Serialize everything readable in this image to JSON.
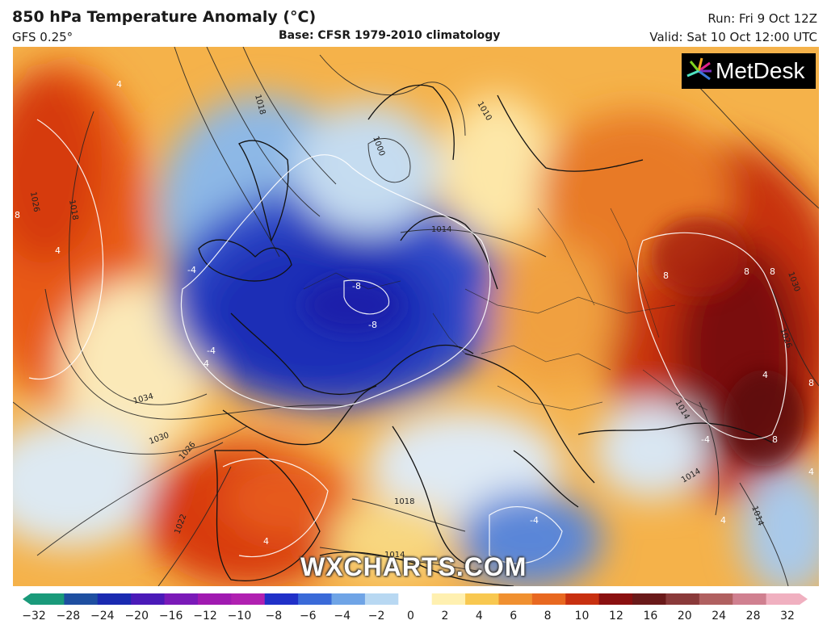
{
  "header": {
    "title": "850 hPa Temperature Anomaly (°C)",
    "model": "GFS 0.25°",
    "base": "Base: CFSR 1979-2010 climatology",
    "run": "Run: Fri 9 Oct 12Z",
    "valid": "Valid: Sat 10 Oct 12:00 UTC"
  },
  "branding": {
    "logo_text": "MetDesk",
    "watermark": "WXCHARTS.COM"
  },
  "colorbar": {
    "ticks": [
      "−32",
      "−28",
      "−24",
      "−20",
      "−16",
      "−12",
      "−10",
      "−8",
      "−6",
      "−4",
      "−2",
      "0",
      "2",
      "4",
      "6",
      "8",
      "10",
      "12",
      "16",
      "20",
      "24",
      "28",
      "32"
    ],
    "colors": [
      "#1a9a7a",
      "#1e4fa0",
      "#1a2ab0",
      "#4a1ab8",
      "#7a1ab8",
      "#a01ab0",
      "#b020b0",
      "#2030c8",
      "#3a6ad8",
      "#6fa4e6",
      "#b8d8f2",
      "#ffffff",
      "#fff0b0",
      "#f8c850",
      "#f09030",
      "#e86820",
      "#c83010",
      "#8a1010",
      "#6a1a1a",
      "#8a3a3a",
      "#b06060",
      "#d08090",
      "#f0b0c0"
    ]
  },
  "isobars": [
    "1018",
    "1010",
    "1000",
    "1014",
    "1026",
    "1034",
    "1030",
    "1026",
    "1022",
    "1018",
    "1014",
    "1018",
    "1014",
    "1030",
    "1026",
    "1014",
    "1014"
  ],
  "anomaly_labels": [
    "4",
    "4",
    "8",
    "-4",
    "-4",
    "-8",
    "-8",
    "8",
    "8",
    "8",
    "8",
    "4",
    "-4",
    "4",
    "4",
    "4",
    "8",
    "-4",
    "4"
  ],
  "colors": {
    "accent_warm": "#e86820",
    "accent_cold": "#2233bb",
    "watermark": "#ffffff"
  }
}
